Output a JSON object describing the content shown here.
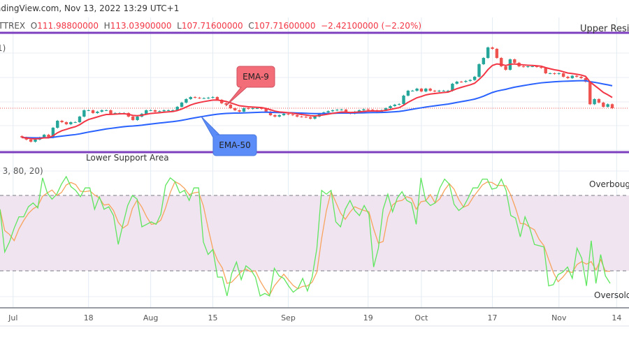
{
  "header": {
    "source_line": "adingView.com, Nov 13, 2022 13:29 UTC+1",
    "symbol_fragment": "ITTREX",
    "ohlc": {
      "o_label": "O",
      "o": "111.98800000",
      "h_label": "H",
      "h": "113.03900000",
      "l_label": "L",
      "l": "107.71600000",
      "c_label": "C",
      "c": "107.71600000",
      "change": "−2.42100000 (−2.20%)"
    },
    "ema_legend_fragment": "1)",
    "stoch_legend_fragment": ", 3, 80, 20)"
  },
  "annotations": {
    "upper": "Upper Resist",
    "lower": "Lower Support Area",
    "ema9": "EMA-9",
    "ema50": "EMA-50",
    "overbought": "Overbough",
    "oversold": "Oversold"
  },
  "colors": {
    "up": "#26a69a",
    "down": "#ef5350",
    "ema9": "#f23645",
    "ema50": "#2962ff",
    "level_line": "#7e3fbf",
    "stoch_k": "#5ee65e",
    "stoch_d": "#f7a35c",
    "stoch_band": "#f1e4f1",
    "ema9_box": "#f26d78",
    "ema50_box": "#5b8cf7"
  },
  "chart_data": [
    {
      "type": "candlestick",
      "interval": "1D",
      "last_date": "2022-11-13",
      "last_close": 107.716,
      "upper_resistance": 188.7,
      "lower_support": 60.5,
      "indicators": [
        {
          "name": "EMA-9",
          "period": 9
        },
        {
          "name": "EMA-50",
          "period": 50
        }
      ],
      "closes": [
        76.2,
        74.0,
        71.7,
        74.0,
        76.2,
        79.2,
        76.2,
        86.7,
        94.2,
        92.7,
        90.5,
        92.7,
        92.7,
        98.7,
        105.5,
        105.5,
        102.5,
        104.0,
        105.5,
        105.5,
        101.7,
        102.5,
        102.5,
        102.5,
        98.7,
        95.0,
        98.7,
        101.7,
        105.5,
        105.5,
        104.0,
        104.5,
        105.5,
        105.5,
        105.5,
        109.2,
        113.7,
        117.5,
        119.7,
        119.0,
        118.5,
        118.5,
        119.0,
        119.7,
        116.7,
        113.0,
        111.5,
        107.7,
        105.5,
        104.0,
        107.7,
        107.0,
        107.7,
        107.7,
        107.0,
        104.0,
        100.2,
        98.7,
        100.2,
        101.7,
        101.0,
        100.2,
        98.7,
        98.5,
        98.0,
        96.5,
        98.7,
        101.7,
        103.2,
        104.5,
        105.5,
        106.0,
        106.2,
        102.5,
        102.0,
        104.0,
        105.5,
        106.5,
        106.0,
        105.5,
        104.0,
        105.5,
        107.7,
        110.0,
        111.5,
        112.2,
        121.2,
        126.5,
        126.5,
        128.7,
        125.7,
        128.7,
        126.5,
        125.7,
        126.5,
        126.5,
        126.5,
        134.0,
        136.2,
        136.0,
        137.0,
        138.0,
        141.5,
        155.0,
        161.7,
        173.0,
        171.5,
        161.7,
        152.7,
        149.0,
        160.2,
        156.5,
        152.7,
        152.0,
        152.7,
        152.7,
        152.0,
        151.0,
        145.2,
        145.2,
        144.5,
        145.2,
        141.5,
        140.0,
        142.5,
        141.5,
        140.0,
        136.2,
        111.988,
        117.5,
        113.7,
        109.2,
        111.988,
        107.716
      ],
      "x_ticks": [
        {
          "label": "Jul",
          "date": "2022-07-01"
        },
        {
          "label": "18",
          "date": "2022-07-18"
        },
        {
          "label": "Aug",
          "date": "2022-08-01"
        },
        {
          "label": "15",
          "date": "2022-08-15"
        },
        {
          "label": "Sep",
          "date": "2022-09-01"
        },
        {
          "label": "19",
          "date": "2022-09-19"
        },
        {
          "label": "Oct",
          "date": "2022-10-01"
        },
        {
          "label": "17",
          "date": "2022-10-17"
        },
        {
          "label": "Nov",
          "date": "2022-11-01"
        },
        {
          "label": "14",
          "date": "2022-11-14"
        }
      ],
      "grid": true
    },
    {
      "type": "line",
      "indicator": "Stochastic",
      "smoothing": 3,
      "upper_band": 80,
      "lower_band": 20,
      "ylim": [
        0,
        100
      ],
      "k": [
        69,
        35,
        43,
        54,
        63,
        63,
        71,
        74,
        70,
        94,
        82,
        77,
        81,
        89,
        95,
        87,
        84,
        79,
        86,
        86,
        69,
        79,
        69,
        71,
        64,
        41,
        57,
        72,
        80,
        77,
        55,
        57,
        59,
        57,
        65,
        88,
        94,
        91,
        82,
        84,
        76,
        86,
        86,
        43,
        33,
        37,
        15,
        15,
        0,
        18,
        27,
        13,
        24,
        21,
        15,
        0,
        2,
        0,
        22,
        16,
        14,
        8,
        3,
        6,
        14,
        4,
        15,
        38,
        84,
        81,
        84,
        59,
        55,
        69,
        76,
        68,
        64,
        72,
        65,
        23,
        38,
        69,
        81,
        67,
        78,
        83,
        76,
        74,
        57,
        94,
        76,
        72,
        74,
        86,
        93,
        89,
        73,
        68,
        71,
        78,
        86,
        86,
        93,
        93,
        85,
        86,
        93,
        84,
        64,
        62,
        47,
        63,
        54,
        41,
        40,
        39,
        8,
        9,
        17,
        19,
        23,
        14,
        38,
        30,
        8,
        44,
        10,
        33,
        16,
        10
      ]
    }
  ]
}
